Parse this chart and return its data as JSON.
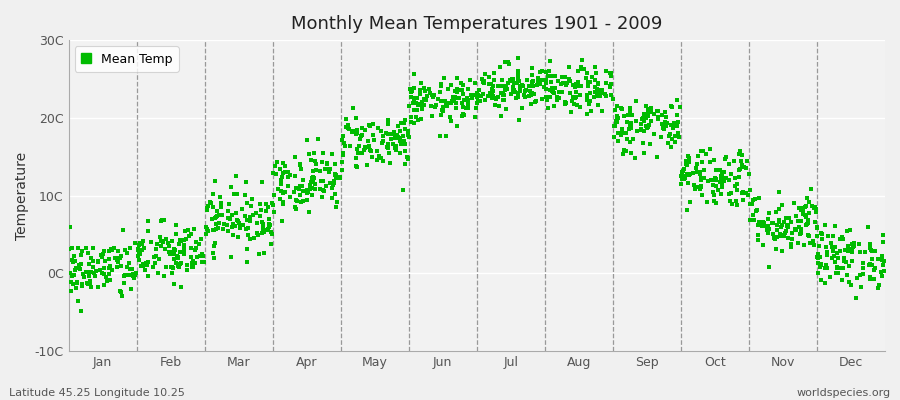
{
  "title": "Monthly Mean Temperatures 1901 - 2009",
  "ylabel": "Temperature",
  "subtitle_left": "Latitude 45.25 Longitude 10.25",
  "subtitle_right": "worldspecies.org",
  "yticks": [
    -10,
    0,
    10,
    20,
    30
  ],
  "ytick_labels": [
    "-10C",
    "0C",
    "10C",
    "20C",
    "30C"
  ],
  "ylim": [
    -10,
    30
  ],
  "months": [
    "Jan",
    "Feb",
    "Mar",
    "Apr",
    "May",
    "Jun",
    "Jul",
    "Aug",
    "Sep",
    "Oct",
    "Nov",
    "Dec"
  ],
  "dot_color": "#00BB00",
  "background_color": "#F0F0F0",
  "plot_bg_color": "#F2F2F2",
  "legend_label": "Mean Temp",
  "num_years": 109,
  "monthly_means": [
    0.5,
    2.5,
    7.0,
    12.0,
    17.0,
    22.0,
    24.0,
    23.5,
    19.0,
    12.5,
    6.5,
    2.0
  ],
  "monthly_stds": [
    2.0,
    2.0,
    2.0,
    2.0,
    1.8,
    1.5,
    1.5,
    1.5,
    1.8,
    2.0,
    2.0,
    2.0
  ],
  "seed": 42,
  "dot_size": 8
}
